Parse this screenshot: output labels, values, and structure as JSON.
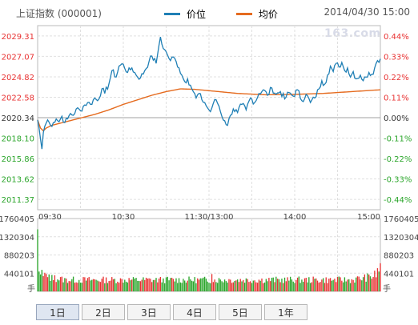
{
  "header": {
    "title": "上证指数 (000001)",
    "datetime": "2014/04/30 15:00"
  },
  "legend": [
    {
      "name": "价位",
      "color": "#1f7fb5"
    },
    {
      "name": "均价",
      "color": "#e56b1f"
    }
  ],
  "watermark": "163.com",
  "tabs": [
    {
      "label": "1日",
      "active": true
    },
    {
      "label": "2日",
      "active": false
    },
    {
      "label": "3日",
      "active": false
    },
    {
      "label": "4日",
      "active": false
    },
    {
      "label": "5日",
      "active": false
    },
    {
      "label": "1年",
      "active": false
    }
  ],
  "colors": {
    "up": "#e83232",
    "down": "#2aa52a",
    "flat": "#333333",
    "grid": "#e0e0e0",
    "axis": "#bbbbbb"
  },
  "chart_data": {
    "type": "line",
    "prev_close": 2020.34,
    "ylim": [
      2010.24,
      2030.44
    ],
    "y_ticks": [
      {
        "label": "2029.31",
        "pct": "0.44%",
        "value": 2029.31,
        "dir": "up"
      },
      {
        "label": "2027.07",
        "pct": "0.33%",
        "value": 2027.07,
        "dir": "up"
      },
      {
        "label": "2024.82",
        "pct": "0.22%",
        "value": 2024.82,
        "dir": "up"
      },
      {
        "label": "2022.58",
        "pct": "0.11%",
        "value": 2022.58,
        "dir": "up"
      },
      {
        "label": "2020.34",
        "pct": "0.00%",
        "value": 2020.34,
        "dir": "flat"
      },
      {
        "label": "2018.10",
        "pct": "-0.11%",
        "value": 2018.1,
        "dir": "down"
      },
      {
        "label": "2015.86",
        "pct": "-0.22%",
        "value": 2015.86,
        "dir": "down"
      },
      {
        "label": "2013.62",
        "pct": "-0.33%",
        "value": 2013.62,
        "dir": "down"
      },
      {
        "label": "2011.37",
        "pct": "-0.44%",
        "value": 2011.37,
        "dir": "down"
      }
    ],
    "x_ticks": [
      {
        "label": "09:30",
        "minute": 0
      },
      {
        "label": "10:30",
        "minute": 60
      },
      {
        "label": "11:30/13:00",
        "minute": 120
      },
      {
        "label": "14:00",
        "minute": 180
      },
      {
        "label": "15:00",
        "minute": 240
      }
    ],
    "price_anchors": [
      [
        0,
        2020.1
      ],
      [
        1,
        2019.2
      ],
      [
        2,
        2018.0
      ],
      [
        3,
        2016.9
      ],
      [
        4,
        2018.7
      ],
      [
        5,
        2019.4
      ],
      [
        7,
        2020.1
      ],
      [
        9,
        2019.5
      ],
      [
        11,
        2019.8
      ],
      [
        13,
        2020.2
      ],
      [
        15,
        2019.9
      ],
      [
        17,
        2020.5
      ],
      [
        19,
        2019.8
      ],
      [
        21,
        2020.2
      ],
      [
        23,
        2020.8
      ],
      [
        25,
        2020.6
      ],
      [
        27,
        2021.3
      ],
      [
        30,
        2021.1
      ],
      [
        32,
        2021.6
      ],
      [
        35,
        2022.0
      ],
      [
        37,
        2021.8
      ],
      [
        40,
        2022.5
      ],
      [
        42,
        2022.2
      ],
      [
        45,
        2023.5
      ],
      [
        47,
        2023.0
      ],
      [
        50,
        2024.1
      ],
      [
        52,
        2025.5
      ],
      [
        55,
        2024.8
      ],
      [
        57,
        2026.0
      ],
      [
        60,
        2026.2
      ],
      [
        63,
        2025.3
      ],
      [
        66,
        2025.8
      ],
      [
        69,
        2025.0
      ],
      [
        72,
        2024.7
      ],
      [
        75,
        2025.5
      ],
      [
        78,
        2026.5
      ],
      [
        80,
        2027.1
      ],
      [
        83,
        2026.3
      ],
      [
        85,
        2028.3
      ],
      [
        86,
        2029.2
      ],
      [
        87,
        2028.4
      ],
      [
        89,
        2027.8
      ],
      [
        91,
        2027.2
      ],
      [
        93,
        2026.6
      ],
      [
        95,
        2027.0
      ],
      [
        97,
        2026.5
      ],
      [
        99,
        2025.8
      ],
      [
        101,
        2025.0
      ],
      [
        103,
        2024.3
      ],
      [
        105,
        2024.6
      ],
      [
        107,
        2023.9
      ],
      [
        109,
        2023.2
      ],
      [
        111,
        2022.5
      ],
      [
        113,
        2023.0
      ],
      [
        115,
        2022.3
      ],
      [
        117,
        2022.0
      ],
      [
        119,
        2021.4
      ],
      [
        121,
        2021.0
      ],
      [
        123,
        2021.9
      ],
      [
        125,
        2022.3
      ],
      [
        127,
        2021.6
      ],
      [
        129,
        2020.5
      ],
      [
        131,
        2020.0
      ],
      [
        133,
        2019.5
      ],
      [
        135,
        2020.6
      ],
      [
        137,
        2021.3
      ],
      [
        140,
        2020.9
      ],
      [
        143,
        2021.8
      ],
      [
        146,
        2021.2
      ],
      [
        149,
        2022.5
      ],
      [
        152,
        2022.0
      ],
      [
        155,
        2023.0
      ],
      [
        158,
        2023.4
      ],
      [
        161,
        2022.8
      ],
      [
        164,
        2023.6
      ],
      [
        167,
        2022.9
      ],
      [
        170,
        2023.2
      ],
      [
        173,
        2022.4
      ],
      [
        176,
        2023.1
      ],
      [
        179,
        2022.7
      ],
      [
        182,
        2023.4
      ],
      [
        185,
        2022.2
      ],
      [
        188,
        2022.9
      ],
      [
        191,
        2022.0
      ],
      [
        194,
        2022.5
      ],
      [
        197,
        2023.5
      ],
      [
        199,
        2024.4
      ],
      [
        201,
        2024.0
      ],
      [
        203,
        2025.0
      ],
      [
        205,
        2026.0
      ],
      [
        207,
        2025.4
      ],
      [
        209,
        2026.3
      ],
      [
        211,
        2025.9
      ],
      [
        213,
        2026.4
      ],
      [
        215,
        2025.5
      ],
      [
        217,
        2025.8
      ],
      [
        219,
        2024.8
      ],
      [
        221,
        2025.4
      ],
      [
        223,
        2024.6
      ],
      [
        226,
        2025.0
      ],
      [
        228,
        2024.4
      ],
      [
        230,
        2024.8
      ],
      [
        232,
        2025.3
      ],
      [
        234,
        2025.1
      ],
      [
        236,
        2025.8
      ],
      [
        238,
        2026.6
      ],
      [
        240,
        2026.8
      ]
    ],
    "avg_anchors": [
      [
        0,
        2020.1
      ],
      [
        2,
        2019.2
      ],
      [
        4,
        2018.9
      ],
      [
        6,
        2019.2
      ],
      [
        10,
        2019.5
      ],
      [
        15,
        2019.7
      ],
      [
        20,
        2019.9
      ],
      [
        25,
        2020.1
      ],
      [
        30,
        2020.3
      ],
      [
        40,
        2020.7
      ],
      [
        50,
        2021.2
      ],
      [
        60,
        2021.8
      ],
      [
        70,
        2022.3
      ],
      [
        80,
        2022.8
      ],
      [
        90,
        2023.2
      ],
      [
        100,
        2023.5
      ],
      [
        110,
        2023.45
      ],
      [
        120,
        2023.3
      ],
      [
        140,
        2023.0
      ],
      [
        160,
        2022.85
      ],
      [
        180,
        2022.9
      ],
      [
        200,
        2023.0
      ],
      [
        220,
        2023.2
      ],
      [
        240,
        2023.4
      ]
    ],
    "volume": {
      "unit": "手",
      "ylim": [
        0,
        1760405
      ],
      "y_ticks": [
        1760405,
        1320304,
        880203,
        440101
      ],
      "y_tick_labels": [
        "1760405",
        "1320304",
        "880203",
        "440101"
      ],
      "first_bar": 1500000,
      "base_level": 300000,
      "spikes": [
        {
          "minute": 1,
          "value": 480000
        },
        {
          "minute": 3,
          "value": 520000
        },
        {
          "minute": 5,
          "value": 450000
        },
        {
          "minute": 8,
          "value": 410000
        },
        {
          "minute": 12,
          "value": 390000
        },
        {
          "minute": 122,
          "value": 420000
        },
        {
          "minute": 236,
          "value": 500000
        },
        {
          "minute": 238,
          "value": 560000
        },
        {
          "minute": 240,
          "value": 680000
        }
      ]
    }
  }
}
